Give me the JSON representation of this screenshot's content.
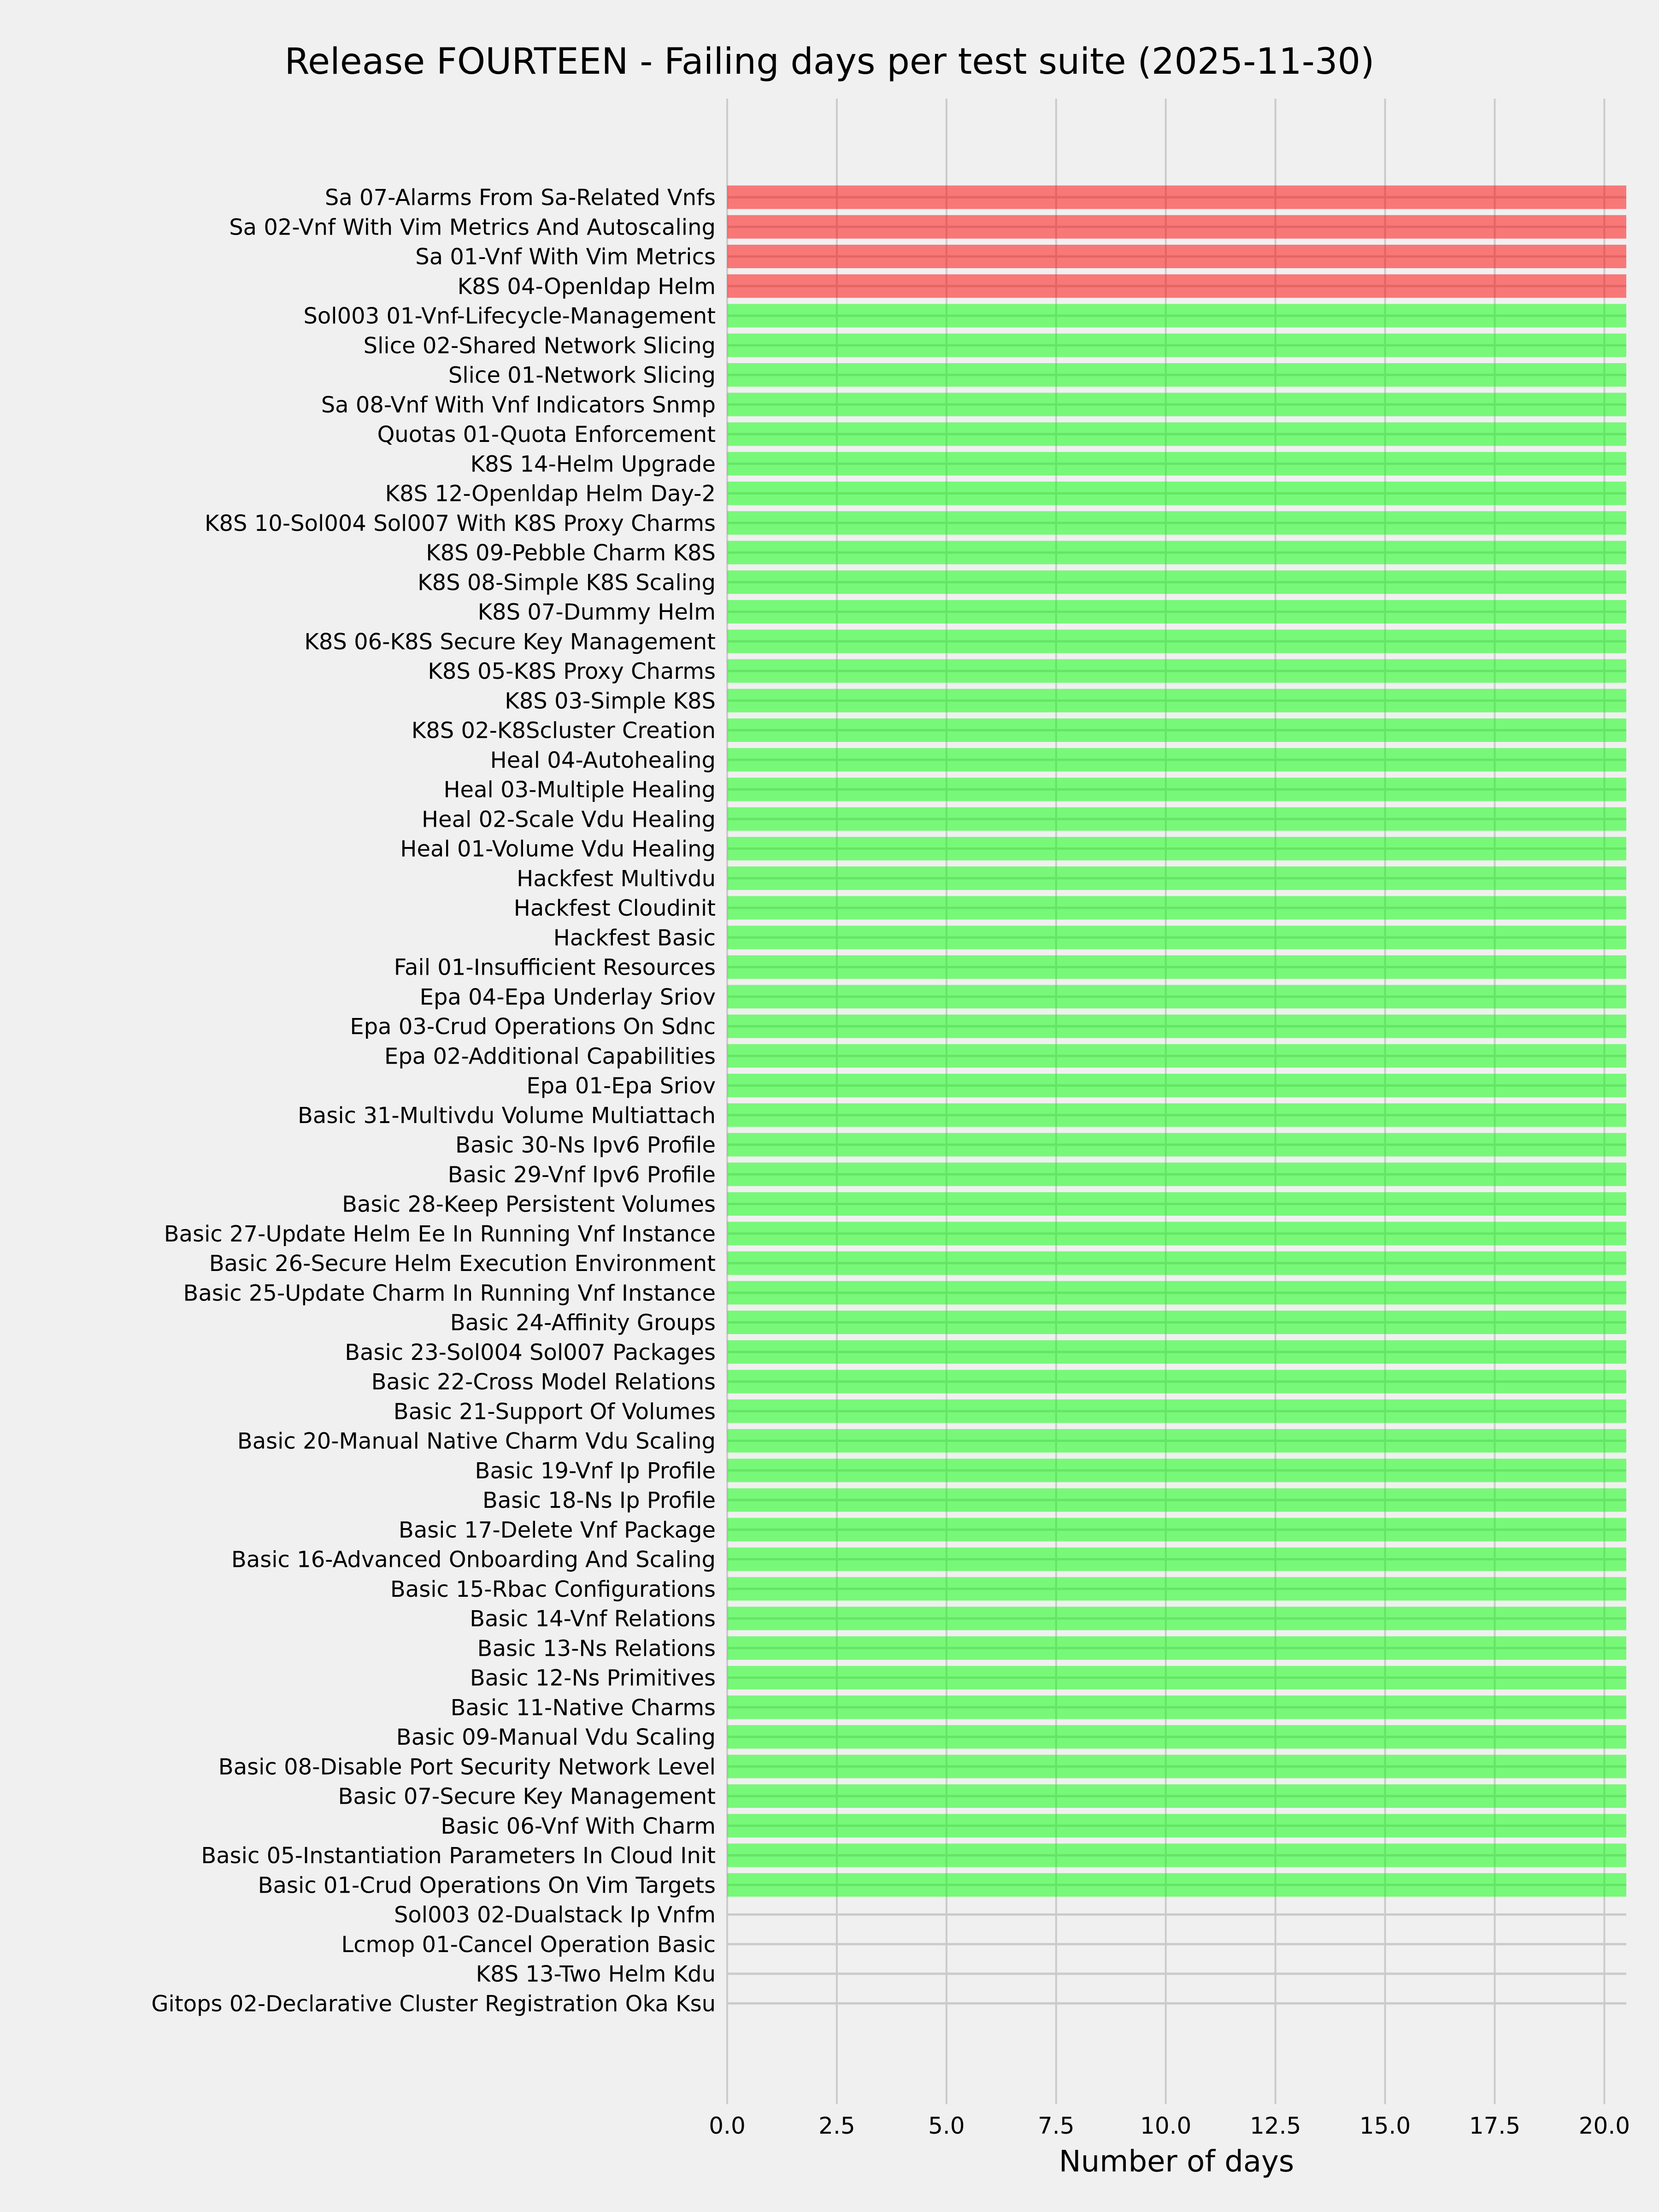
{
  "chart_data": {
    "type": "bar",
    "orientation": "horizontal",
    "title": "Release FOURTEEN - Failing days per test suite (2025-11-30)",
    "xlabel": "Number of days",
    "ylabel": "",
    "xlim": [
      0,
      20.5
    ],
    "xticks": [
      "0.0",
      "2.5",
      "5.0",
      "7.5",
      "10.0",
      "12.5",
      "15.0",
      "17.5",
      "20.0"
    ],
    "grid": true,
    "colors": {
      "red": "#ff0000",
      "green": "#00ff00",
      "background": "#f0f0f0",
      "grid": "#cbcbcb"
    },
    "bars": [
      {
        "label": "Sa 07-Alarms From Sa-Related Vnfs",
        "value": 20.5,
        "color": "red"
      },
      {
        "label": "Sa 02-Vnf With Vim Metrics And Autoscaling",
        "value": 20.5,
        "color": "red"
      },
      {
        "label": "Sa 01-Vnf With Vim Metrics",
        "value": 20.5,
        "color": "red"
      },
      {
        "label": "K8S 04-Openldap Helm",
        "value": 20.5,
        "color": "red"
      },
      {
        "label": "Sol003 01-Vnf-Lifecycle-Management",
        "value": 20.5,
        "color": "green"
      },
      {
        "label": "Slice 02-Shared Network Slicing",
        "value": 20.5,
        "color": "green"
      },
      {
        "label": "Slice 01-Network Slicing",
        "value": 20.5,
        "color": "green"
      },
      {
        "label": "Sa 08-Vnf With Vnf Indicators Snmp",
        "value": 20.5,
        "color": "green"
      },
      {
        "label": "Quotas 01-Quota Enforcement",
        "value": 20.5,
        "color": "green"
      },
      {
        "label": "K8S 14-Helm Upgrade",
        "value": 20.5,
        "color": "green"
      },
      {
        "label": "K8S 12-Openldap Helm Day-2",
        "value": 20.5,
        "color": "green"
      },
      {
        "label": "K8S 10-Sol004 Sol007 With K8S Proxy Charms",
        "value": 20.5,
        "color": "green"
      },
      {
        "label": "K8S 09-Pebble Charm K8S",
        "value": 20.5,
        "color": "green"
      },
      {
        "label": "K8S 08-Simple K8S Scaling",
        "value": 20.5,
        "color": "green"
      },
      {
        "label": "K8S 07-Dummy Helm",
        "value": 20.5,
        "color": "green"
      },
      {
        "label": "K8S 06-K8S Secure Key Management",
        "value": 20.5,
        "color": "green"
      },
      {
        "label": "K8S 05-K8S Proxy Charms",
        "value": 20.5,
        "color": "green"
      },
      {
        "label": "K8S 03-Simple K8S",
        "value": 20.5,
        "color": "green"
      },
      {
        "label": "K8S 02-K8Scluster Creation",
        "value": 20.5,
        "color": "green"
      },
      {
        "label": "Heal 04-Autohealing",
        "value": 20.5,
        "color": "green"
      },
      {
        "label": "Heal 03-Multiple Healing",
        "value": 20.5,
        "color": "green"
      },
      {
        "label": "Heal 02-Scale Vdu Healing",
        "value": 20.5,
        "color": "green"
      },
      {
        "label": "Heal 01-Volume Vdu Healing",
        "value": 20.5,
        "color": "green"
      },
      {
        "label": "Hackfest Multivdu",
        "value": 20.5,
        "color": "green"
      },
      {
        "label": "Hackfest Cloudinit",
        "value": 20.5,
        "color": "green"
      },
      {
        "label": "Hackfest Basic",
        "value": 20.5,
        "color": "green"
      },
      {
        "label": "Fail 01-Insufficient Resources",
        "value": 20.5,
        "color": "green"
      },
      {
        "label": "Epa 04-Epa Underlay Sriov",
        "value": 20.5,
        "color": "green"
      },
      {
        "label": "Epa 03-Crud Operations On Sdnc",
        "value": 20.5,
        "color": "green"
      },
      {
        "label": "Epa 02-Additional Capabilities",
        "value": 20.5,
        "color": "green"
      },
      {
        "label": "Epa 01-Epa Sriov",
        "value": 20.5,
        "color": "green"
      },
      {
        "label": "Basic 31-Multivdu Volume Multiattach",
        "value": 20.5,
        "color": "green"
      },
      {
        "label": "Basic 30-Ns Ipv6 Profile",
        "value": 20.5,
        "color": "green"
      },
      {
        "label": "Basic 29-Vnf Ipv6 Profile",
        "value": 20.5,
        "color": "green"
      },
      {
        "label": "Basic 28-Keep Persistent Volumes",
        "value": 20.5,
        "color": "green"
      },
      {
        "label": "Basic 27-Update Helm Ee In Running Vnf Instance",
        "value": 20.5,
        "color": "green"
      },
      {
        "label": "Basic 26-Secure Helm Execution Environment",
        "value": 20.5,
        "color": "green"
      },
      {
        "label": "Basic 25-Update Charm In Running Vnf Instance",
        "value": 20.5,
        "color": "green"
      },
      {
        "label": "Basic 24-Affinity Groups",
        "value": 20.5,
        "color": "green"
      },
      {
        "label": "Basic 23-Sol004 Sol007 Packages",
        "value": 20.5,
        "color": "green"
      },
      {
        "label": "Basic 22-Cross Model Relations",
        "value": 20.5,
        "color": "green"
      },
      {
        "label": "Basic 21-Support Of Volumes",
        "value": 20.5,
        "color": "green"
      },
      {
        "label": "Basic 20-Manual Native Charm Vdu Scaling",
        "value": 20.5,
        "color": "green"
      },
      {
        "label": "Basic 19-Vnf Ip Profile",
        "value": 20.5,
        "color": "green"
      },
      {
        "label": "Basic 18-Ns Ip Profile",
        "value": 20.5,
        "color": "green"
      },
      {
        "label": "Basic 17-Delete Vnf Package",
        "value": 20.5,
        "color": "green"
      },
      {
        "label": "Basic 16-Advanced Onboarding And Scaling",
        "value": 20.5,
        "color": "green"
      },
      {
        "label": "Basic 15-Rbac Configurations",
        "value": 20.5,
        "color": "green"
      },
      {
        "label": "Basic 14-Vnf Relations",
        "value": 20.5,
        "color": "green"
      },
      {
        "label": "Basic 13-Ns Relations",
        "value": 20.5,
        "color": "green"
      },
      {
        "label": "Basic 12-Ns Primitives",
        "value": 20.5,
        "color": "green"
      },
      {
        "label": "Basic 11-Native Charms",
        "value": 20.5,
        "color": "green"
      },
      {
        "label": "Basic 09-Manual Vdu Scaling",
        "value": 20.5,
        "color": "green"
      },
      {
        "label": "Basic 08-Disable Port Security Network Level",
        "value": 20.5,
        "color": "green"
      },
      {
        "label": "Basic 07-Secure Key Management",
        "value": 20.5,
        "color": "green"
      },
      {
        "label": "Basic 06-Vnf With Charm",
        "value": 20.5,
        "color": "green"
      },
      {
        "label": "Basic 05-Instantiation Parameters In Cloud Init",
        "value": 20.5,
        "color": "green"
      },
      {
        "label": "Basic 01-Crud Operations On Vim Targets",
        "value": 20.5,
        "color": "green"
      },
      {
        "label": "Sol003 02-Dualstack Ip Vnfm",
        "value": 0,
        "color": "green"
      },
      {
        "label": "Lcmop 01-Cancel Operation Basic",
        "value": 0,
        "color": "green"
      },
      {
        "label": "K8S 13-Two Helm Kdu",
        "value": 0,
        "color": "green"
      },
      {
        "label": "Gitops 02-Declarative Cluster Registration Oka Ksu",
        "value": 0,
        "color": "green"
      }
    ]
  }
}
